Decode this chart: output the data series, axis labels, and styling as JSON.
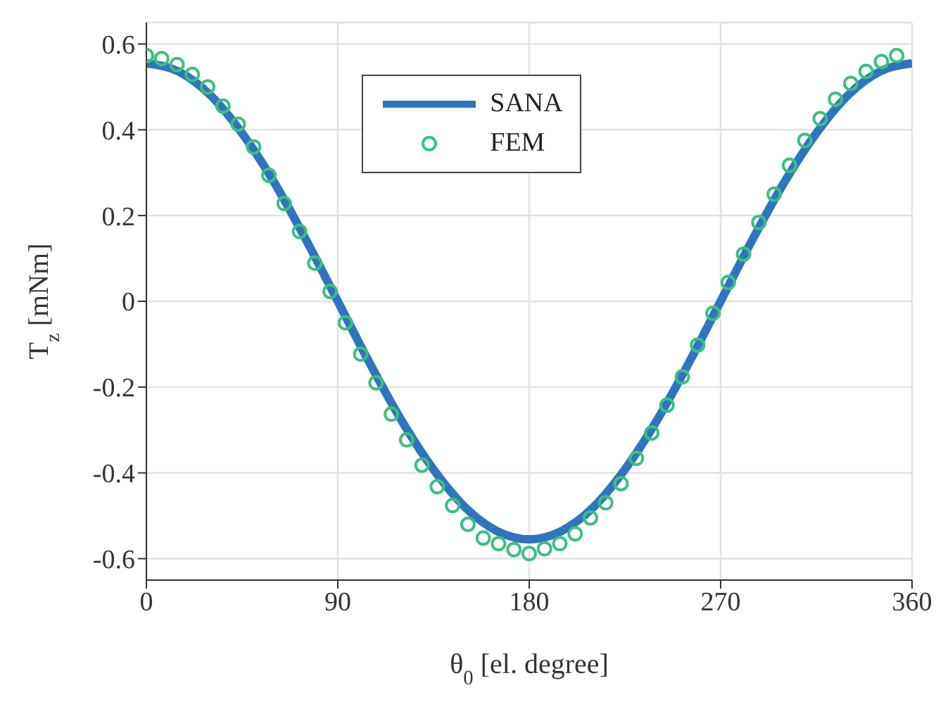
{
  "chart_data": {
    "type": "line",
    "xlabel": "θ$_{0}$ [el. degree]",
    "ylabel": "T$_{z}$ [mNm]",
    "xlim": [
      0,
      360
    ],
    "xticks": [
      0,
      90,
      180,
      270,
      360
    ],
    "ylim": [
      -0.65,
      0.65
    ],
    "yticks": [
      -0.6,
      -0.4,
      -0.2,
      0,
      0.2,
      0.4,
      0.6
    ],
    "grid": true,
    "legend": "top",
    "series": [
      {
        "name": "SANA",
        "color": "#2e75c0",
        "marker": "none",
        "line_style": "solid",
        "x": [
          0,
          15,
          30,
          45,
          60,
          75,
          90,
          105,
          120,
          135,
          150,
          165,
          180,
          195,
          210,
          225,
          240,
          255,
          270,
          285,
          300,
          315,
          330,
          345,
          360
        ],
        "values": [
          0.555,
          0.536,
          0.481,
          0.392,
          0.278,
          0.144,
          0,
          -0.144,
          -0.278,
          -0.392,
          -0.481,
          -0.536,
          -0.555,
          -0.536,
          -0.481,
          -0.392,
          -0.278,
          -0.144,
          0,
          0.144,
          0.278,
          0.392,
          0.481,
          0.536,
          0.555
        ]
      },
      {
        "name": "FEM",
        "type": "scatter",
        "color": "#3dbf7f",
        "marker": "circle",
        "x": [
          0,
          7.2,
          14.4,
          21.6,
          28.8,
          36,
          43.2,
          50.4,
          57.6,
          64.8,
          72,
          79.2,
          86.4,
          93.6,
          100.8,
          108,
          115.2,
          122.4,
          129.6,
          136.8,
          144,
          151.2,
          158.4,
          165.6,
          172.8,
          180,
          187.2,
          194.4,
          201.6,
          208.8,
          216,
          223.2,
          230.4,
          237.6,
          244.8,
          252,
          259.2,
          266.4,
          273.6,
          280.8,
          288,
          295.2,
          302.4,
          309.6,
          316.8,
          324,
          331.2,
          338.4,
          345.6,
          352.8
        ],
        "values": [
          0.573,
          0.566,
          0.552,
          0.529,
          0.5,
          0.455,
          0.413,
          0.36,
          0.294,
          0.228,
          0.163,
          0.089,
          0.023,
          -0.05,
          -0.123,
          -0.19,
          -0.263,
          -0.323,
          -0.382,
          -0.432,
          -0.476,
          -0.52,
          -0.552,
          -0.565,
          -0.579,
          -0.588,
          -0.577,
          -0.565,
          -0.542,
          -0.505,
          -0.47,
          -0.425,
          -0.366,
          -0.307,
          -0.242,
          -0.176,
          -0.102,
          -0.028,
          0.044,
          0.11,
          0.184,
          0.25,
          0.317,
          0.375,
          0.426,
          0.471,
          0.508,
          0.536,
          0.559,
          0.573
        ]
      }
    ]
  }
}
